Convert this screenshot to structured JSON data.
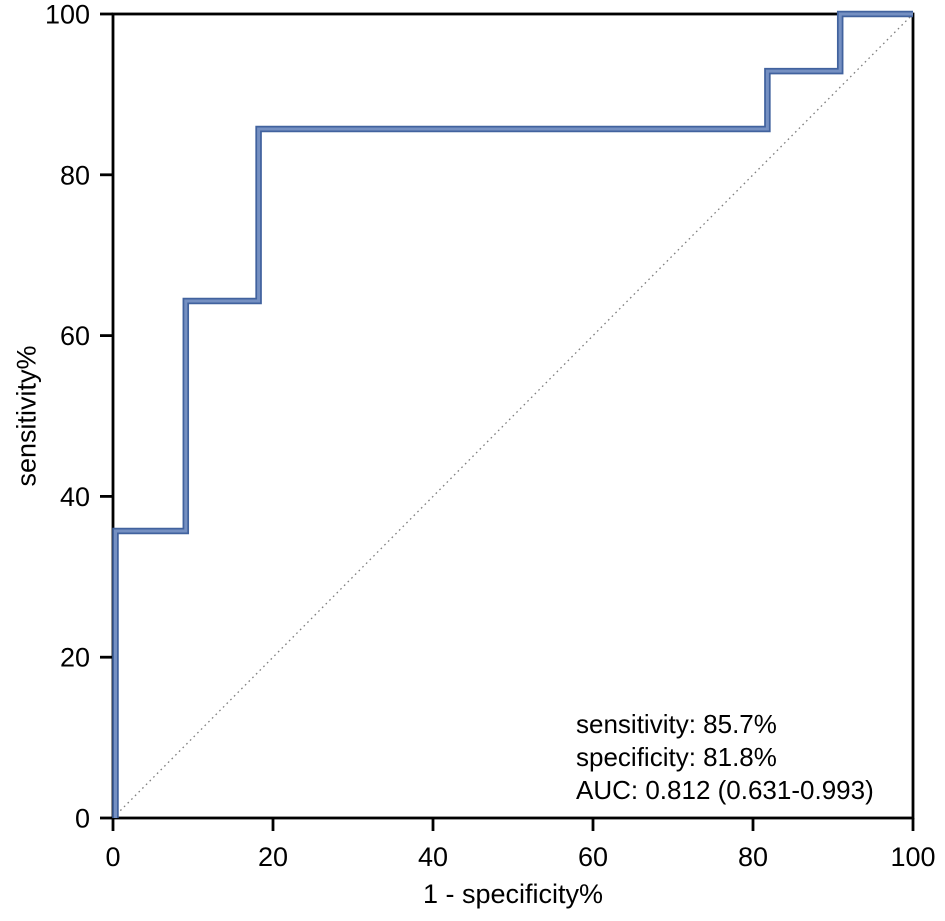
{
  "figure": {
    "xlabel": "1 - specificity%",
    "ylabel": "sensitivity%"
  },
  "annotation": {
    "sensitivity_line": "sensitivity: 85.7%",
    "specificity_line": "specificity: 81.8%",
    "auc_line": "AUC: 0.812 (0.631-0.993)"
  },
  "chart_data": {
    "type": "line",
    "subtype": "roc_step_curve",
    "title": "",
    "xlabel": "1 - specificity%",
    "ylabel": "sensitivity%",
    "xlim": [
      0,
      100
    ],
    "ylim": [
      0,
      100
    ],
    "x_ticks": [
      0,
      20,
      40,
      60,
      80,
      100
    ],
    "y_ticks": [
      0,
      20,
      40,
      60,
      80,
      100
    ],
    "grid": false,
    "legend": "none",
    "axis_color": "#000000",
    "series": [
      {
        "name": "ROC curve",
        "color": "#41629e",
        "highlight_color": "#7590c2",
        "points": [
          [
            0,
            0
          ],
          [
            0,
            35.7
          ],
          [
            9.1,
            35.7
          ],
          [
            9.1,
            64.3
          ],
          [
            18.2,
            64.3
          ],
          [
            18.2,
            85.7
          ],
          [
            81.8,
            85.7
          ],
          [
            81.8,
            92.9
          ],
          [
            90.9,
            92.9
          ],
          [
            90.9,
            100
          ],
          [
            100,
            100
          ]
        ]
      }
    ],
    "reference_line": {
      "name": "chance diagonal",
      "from": [
        0,
        0
      ],
      "to": [
        100,
        100
      ],
      "color": "#7f7f7f",
      "style": "dotted"
    },
    "stats": {
      "sensitivity_pct": 85.7,
      "specificity_pct": 81.8,
      "auc": 0.812,
      "auc_ci_low": 0.631,
      "auc_ci_high": 0.993
    }
  }
}
